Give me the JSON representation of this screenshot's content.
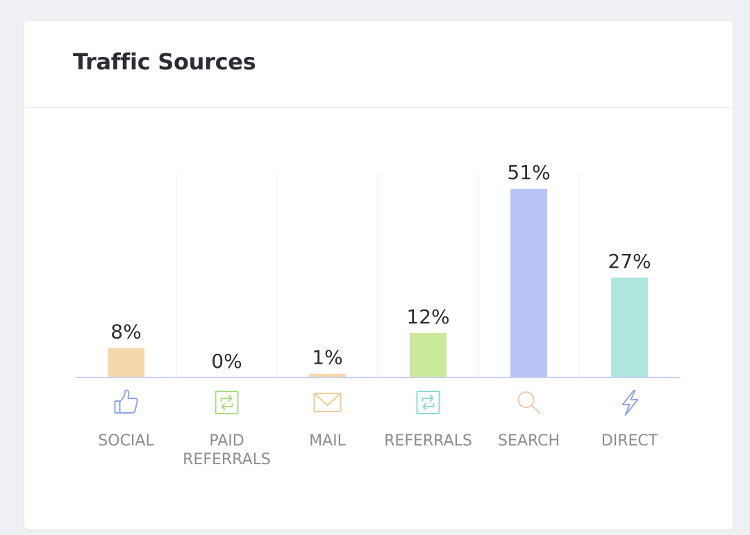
{
  "card": {
    "title": "Traffic Sources"
  },
  "chart_data": {
    "type": "bar",
    "title": "Traffic Sources",
    "categories": [
      "SOCIAL",
      "PAID REFERRALS",
      "MAIL",
      "REFERRALS",
      "SEARCH",
      "DIRECT"
    ],
    "category_lines": [
      [
        "SOCIAL"
      ],
      [
        "PAID",
        "REFERRALS"
      ],
      [
        "MAIL"
      ],
      [
        "REFERRALS"
      ],
      [
        "SEARCH"
      ],
      [
        "DIRECT"
      ]
    ],
    "values": [
      8,
      0,
      1,
      12,
      51,
      27
    ],
    "value_labels": [
      "8%",
      "0%",
      "1%",
      "12%",
      "51%",
      "27%"
    ],
    "icons": [
      "thumbs-up-icon",
      "exchange-icon",
      "mail-icon",
      "exchange-icon",
      "search-icon",
      "bolt-icon"
    ],
    "colors": [
      "#f5d9ad",
      "#e6e8f8",
      "#f5d9ad",
      "#cde99c",
      "#b8c4f5",
      "#ade6dd"
    ],
    "icon_colors": [
      "#8fa5ea",
      "#a9dc86",
      "#f0cb93",
      "#8fd8d0",
      "#f5c7a8",
      "#8fa5ea"
    ],
    "ylim": [
      0,
      51
    ],
    "grid": true
  }
}
